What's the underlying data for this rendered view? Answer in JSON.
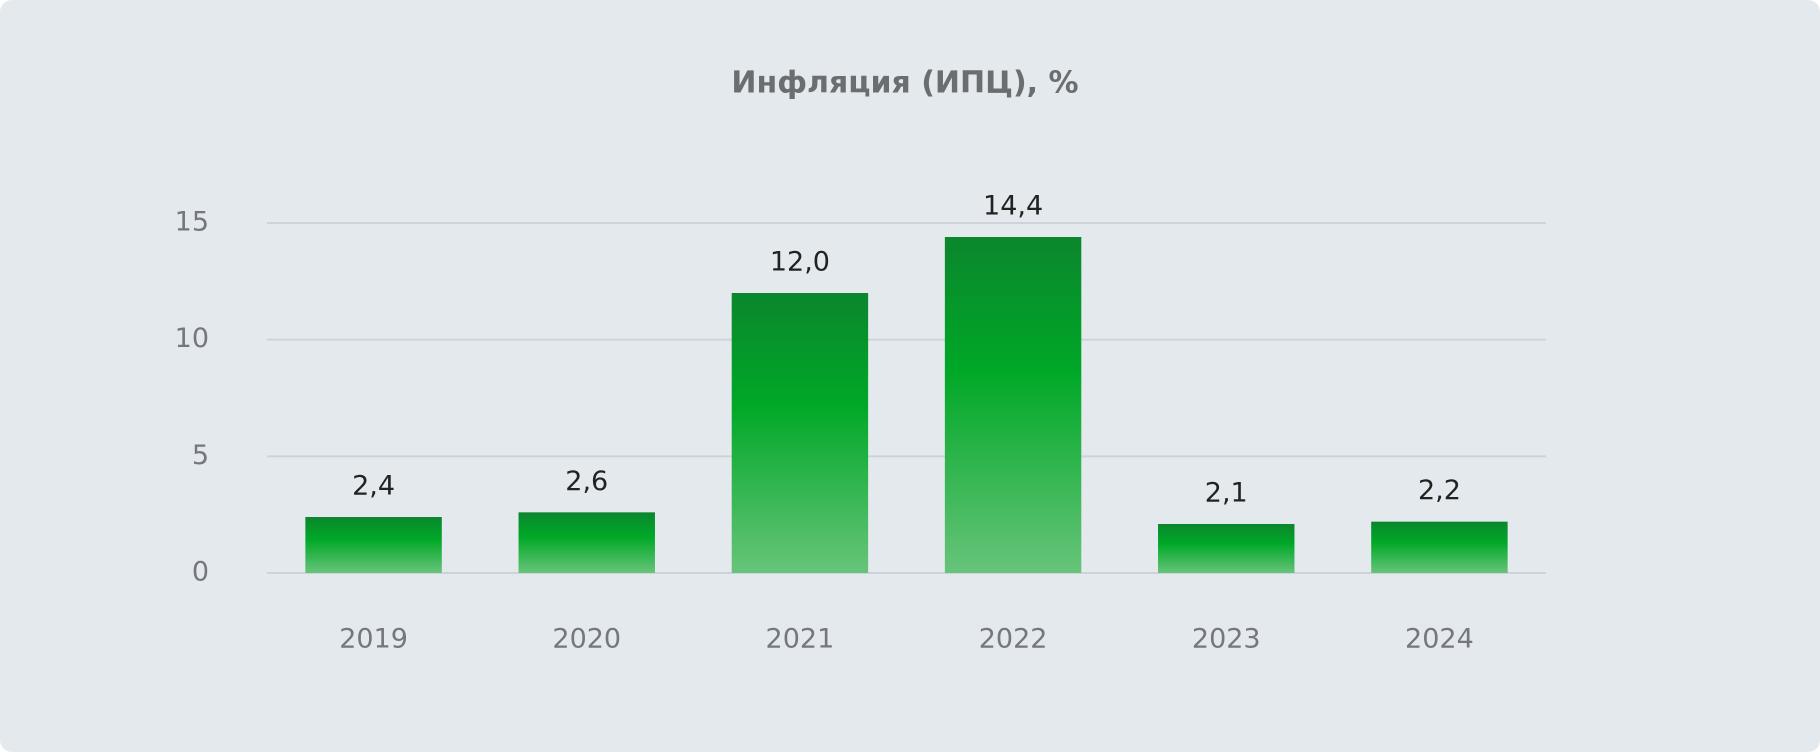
{
  "chart_data": {
    "type": "bar",
    "title": "Инфляция (ИПЦ), %",
    "categories": [
      "2019",
      "2020",
      "2021",
      "2022",
      "2023",
      "2024"
    ],
    "values": [
      2.4,
      2.6,
      12.0,
      14.4,
      2.1,
      2.2
    ],
    "value_labels": [
      "2,4",
      "2,6",
      "12,0",
      "14,4",
      "2,1",
      "2,2"
    ],
    "color": "#00a827",
    "ylim": [
      0,
      15
    ],
    "yticks": [
      0,
      5,
      10,
      15
    ],
    "grid": true
  }
}
